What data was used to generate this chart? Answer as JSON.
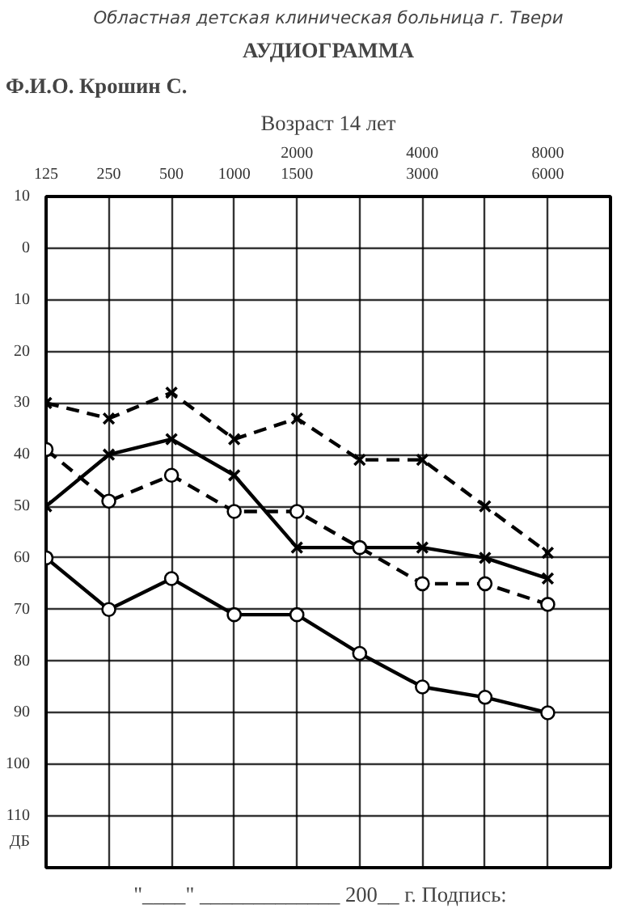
{
  "chart_data": {
    "type": "line",
    "title": "Областная детская клиническая больница г. Твери",
    "subtitle": "АУДИОГРАММА",
    "ylabel": "ДБ",
    "annotations": [
      "Ф.И.О. Крошин С.",
      "Возраст 14 лет",
      "\"____\" _____________ 200__ г.    Подпись:"
    ],
    "categories": [
      "125",
      "250",
      "500",
      "1000",
      "2000\n1500",
      null,
      "4000\n3000",
      null,
      "8000\n6000"
    ],
    "ylim": [
      120,
      -10
    ],
    "yticks": [
      {
        "value": -10,
        "label": "10"
      },
      0,
      10,
      20,
      30,
      40,
      50,
      60,
      70,
      80,
      90,
      100,
      110,
      {
        "value": 120,
        "label": null
      }
    ],
    "grid": true,
    "series": [
      {
        "color": "#000000",
        "marker": "cross",
        "line_style": "dashed",
        "values": [
          30,
          33,
          28,
          37,
          33,
          41,
          41,
          50,
          59
        ]
      },
      {
        "color": "#000000",
        "marker": "cross",
        "line_style": "solid",
        "values": [
          50,
          40,
          37,
          44,
          58,
          58,
          58,
          60,
          64
        ]
      },
      {
        "color": "#000000",
        "marker": "circle",
        "line_style": "dashed",
        "values": [
          39,
          49,
          44,
          51,
          51,
          58,
          65,
          65,
          69
        ]
      },
      {
        "color": "#000000",
        "marker": "circle",
        "line_style": "solid",
        "values": [
          60,
          70,
          64,
          71,
          71,
          78.5,
          85,
          87,
          90
        ]
      }
    ]
  }
}
